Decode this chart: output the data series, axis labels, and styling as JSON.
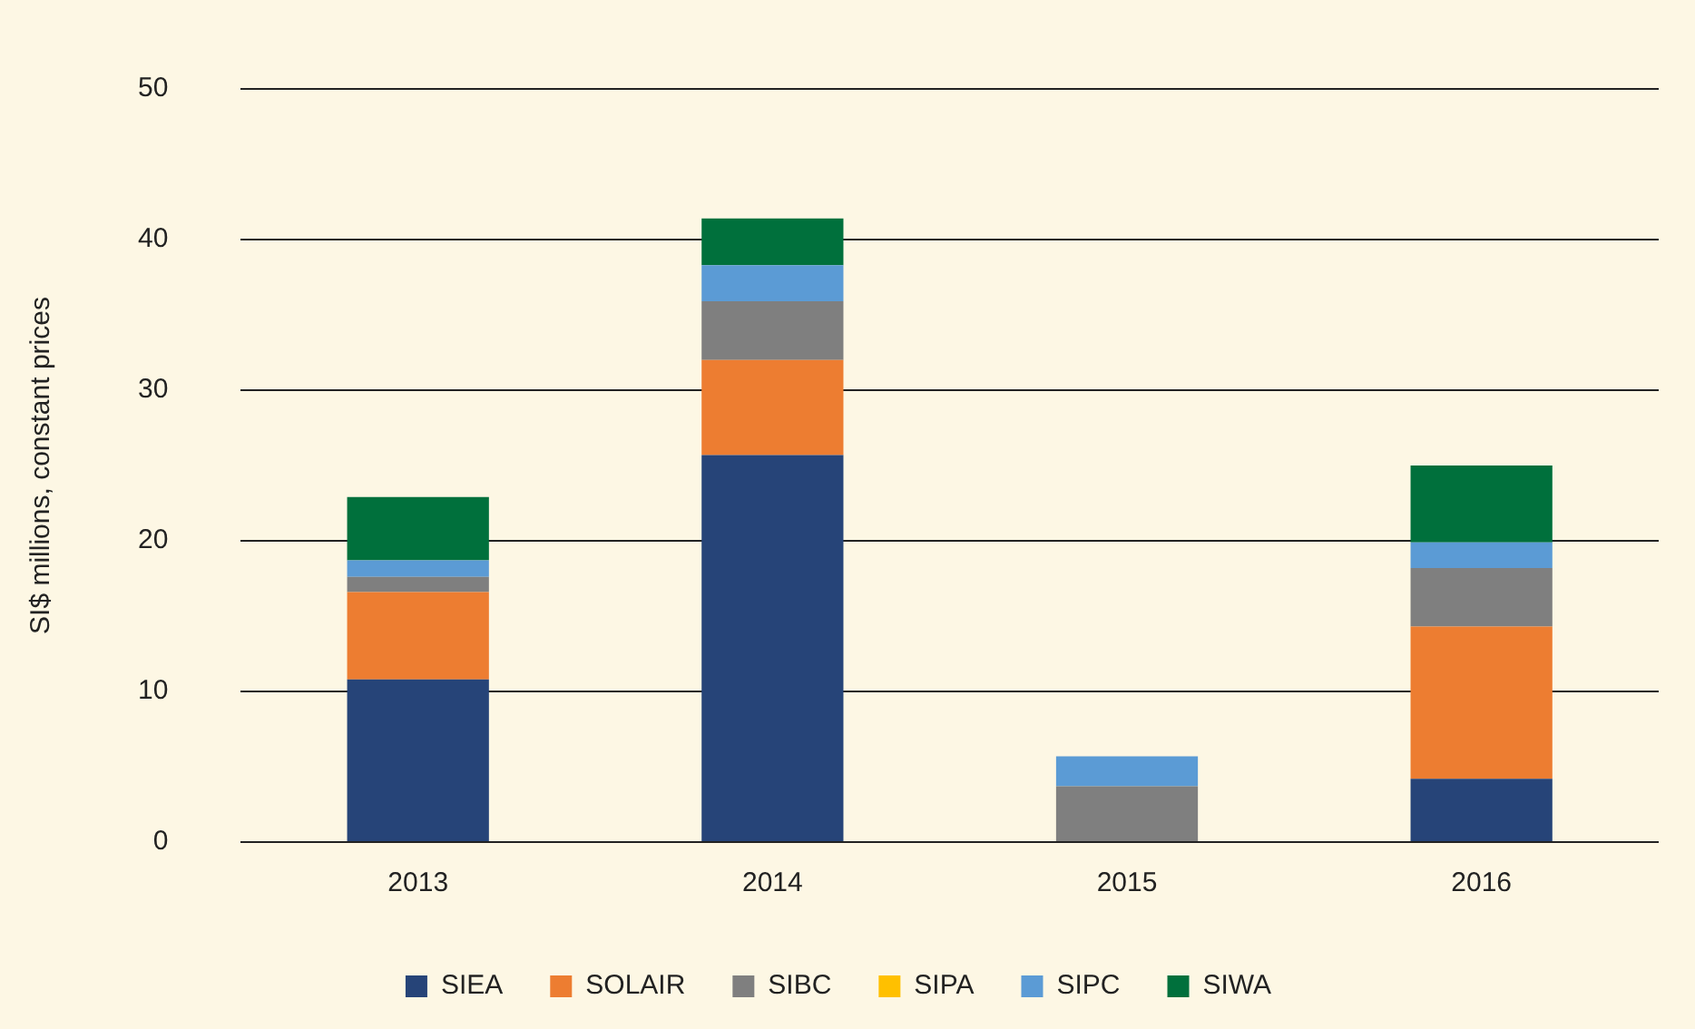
{
  "chart_data": {
    "type": "bar",
    "stacked": true,
    "ylabel": "SI$ millions, constant prices",
    "categories": [
      "2013",
      "2014",
      "2015",
      "2016"
    ],
    "series": [
      {
        "name": "SIEA",
        "color": "#264478",
        "values": [
          10.8,
          25.7,
          0,
          4.2
        ]
      },
      {
        "name": "SOLAIR",
        "color": "#ed7d31",
        "values": [
          5.8,
          6.3,
          0,
          10.1
        ]
      },
      {
        "name": "SIBC",
        "color": "#7f7f7f",
        "values": [
          1.0,
          3.9,
          3.7,
          3.9
        ]
      },
      {
        "name": "SIPA",
        "color": "#ffc000",
        "values": [
          0,
          0,
          0,
          0
        ]
      },
      {
        "name": "SIPC",
        "color": "#5b9bd5",
        "values": [
          1.1,
          2.4,
          2.0,
          1.7
        ]
      },
      {
        "name": "SIWA",
        "color": "#00703c",
        "values": [
          4.2,
          3.1,
          0,
          5.1
        ]
      }
    ],
    "ylim": [
      0,
      50
    ],
    "yticks": [
      0,
      10,
      20,
      30,
      40,
      50
    ],
    "grid": "y",
    "legend": "bottom"
  }
}
